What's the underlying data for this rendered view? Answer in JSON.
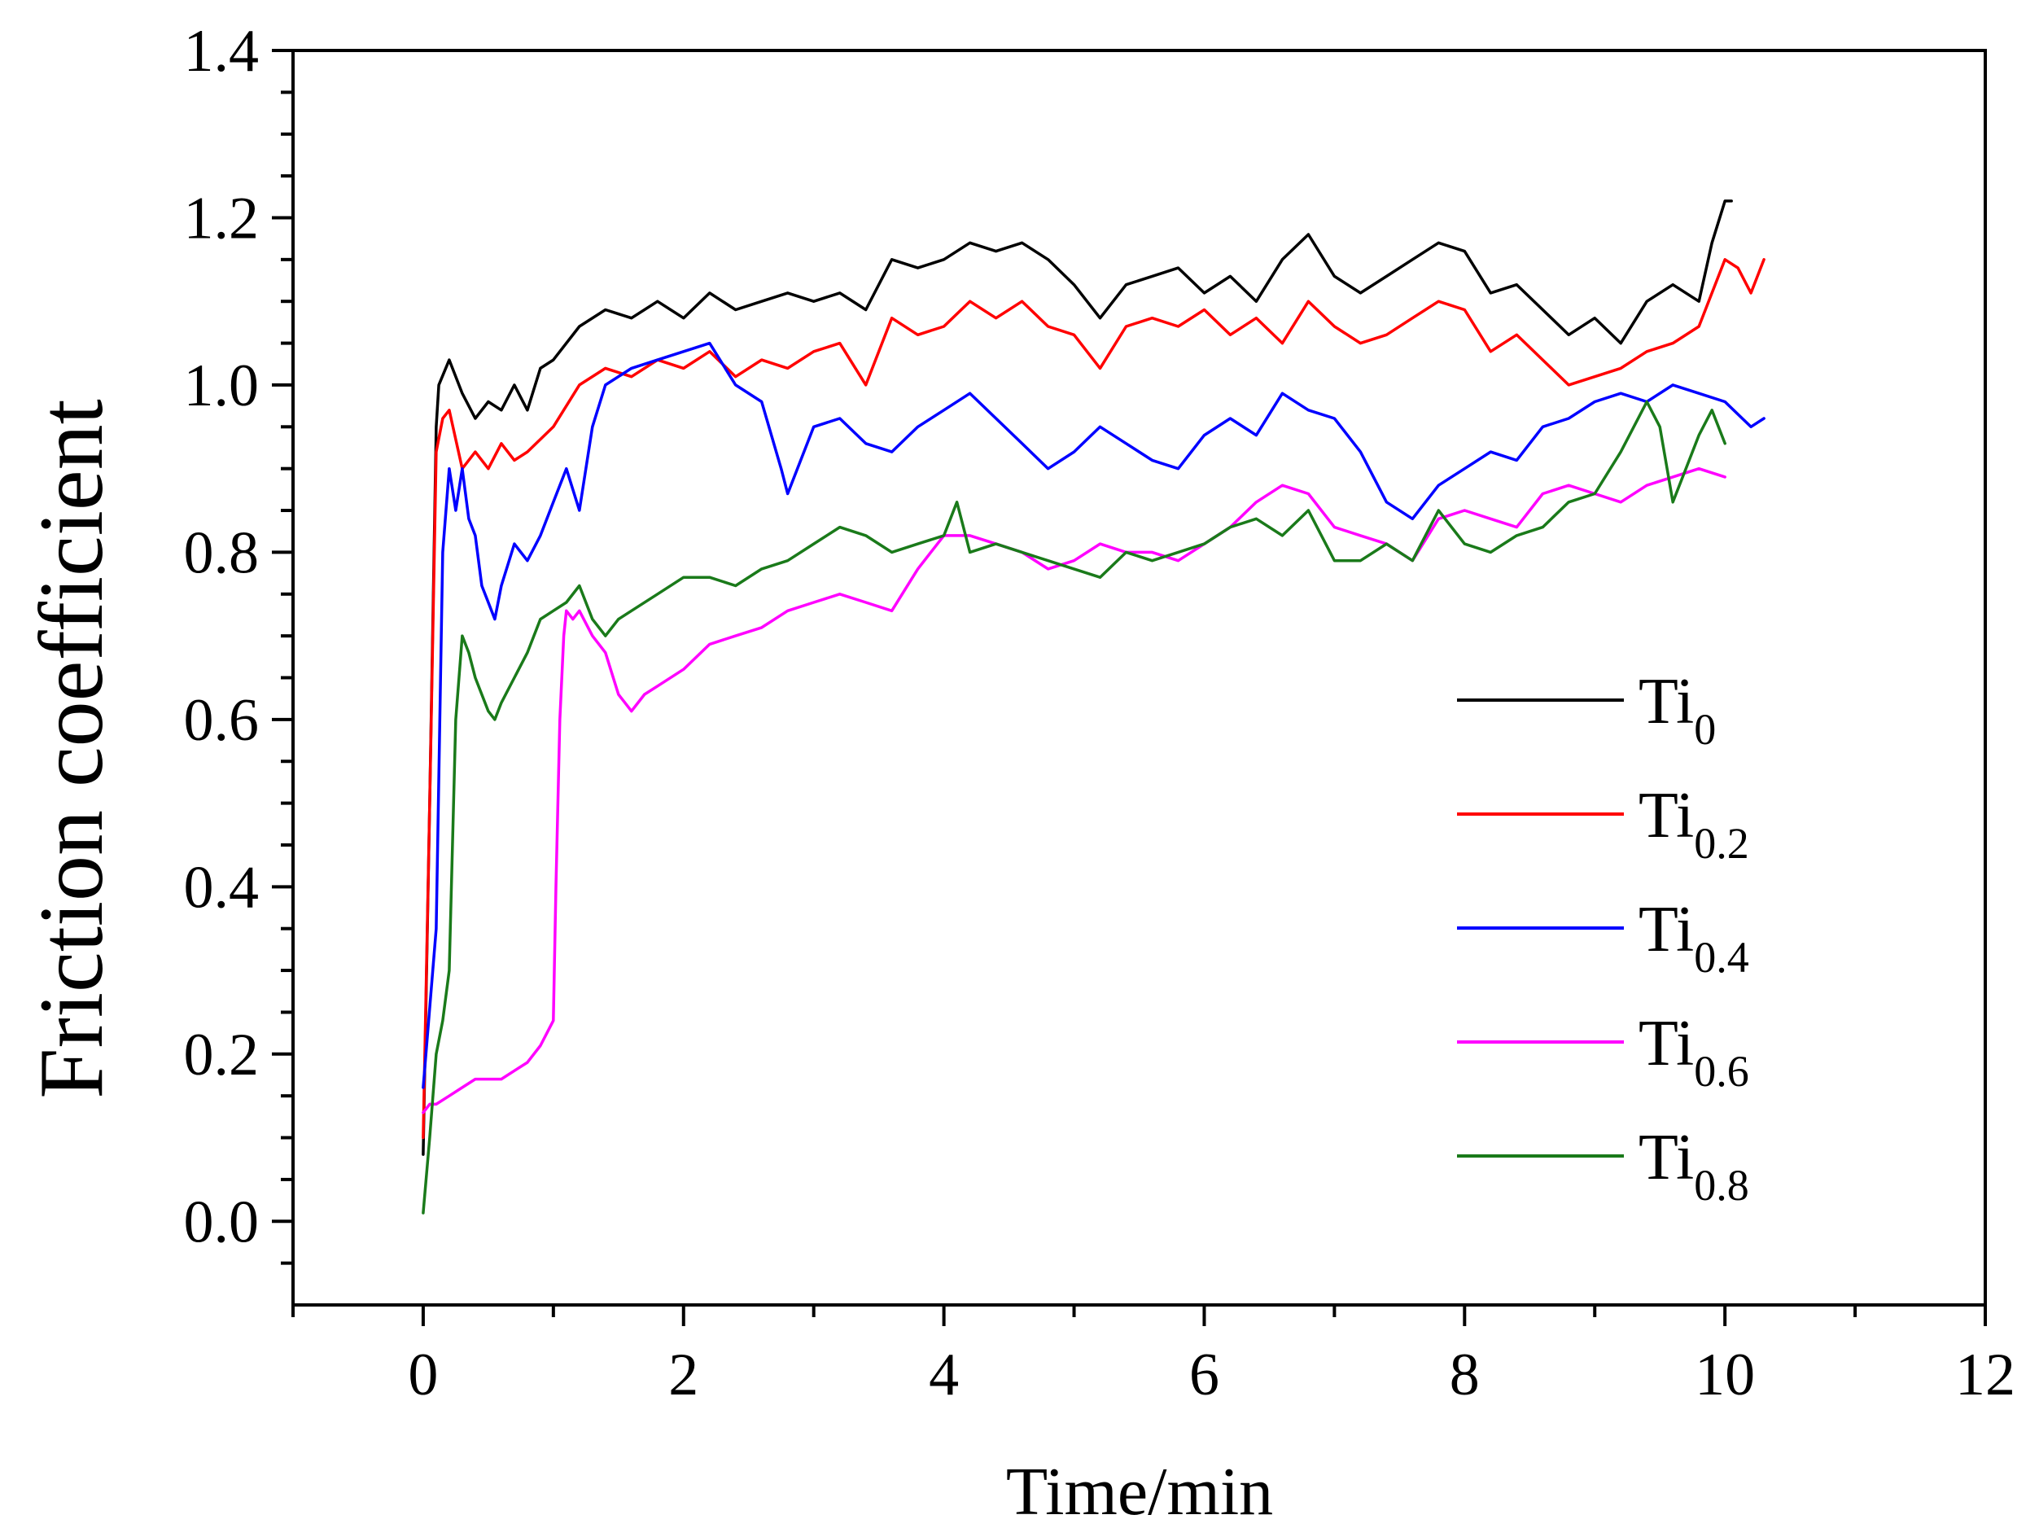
{
  "chart_data": {
    "type": "line",
    "title": "",
    "xlabel": "Time/min",
    "ylabel": "Friction coefficient",
    "xlim": [
      -1,
      12
    ],
    "ylim": [
      -0.1,
      1.4
    ],
    "xticks": [
      0,
      2,
      4,
      6,
      8,
      10,
      12
    ],
    "xtick_labels": [
      "0",
      "2",
      "4",
      "6",
      "8",
      "10",
      "12"
    ],
    "yticks": [
      0.0,
      0.2,
      0.4,
      0.6,
      0.8,
      1.0,
      1.2,
      1.4
    ],
    "ytick_labels": [
      "0.0",
      "0.2",
      "0.4",
      "0.6",
      "0.8",
      "1.0",
      "1.2",
      "1.4"
    ],
    "grid": false,
    "legend_position": "right",
    "series": [
      {
        "name": "Ti0",
        "label_main": "Ti",
        "label_sub": "0",
        "color": "#000000",
        "x": [
          0,
          0.05,
          0.1,
          0.12,
          0.2,
          0.3,
          0.4,
          0.5,
          0.6,
          0.7,
          0.8,
          0.9,
          1.0,
          1.2,
          1.4,
          1.6,
          1.8,
          2.0,
          2.2,
          2.4,
          2.6,
          2.8,
          3.0,
          3.2,
          3.4,
          3.6,
          3.8,
          4.0,
          4.2,
          4.4,
          4.6,
          4.8,
          5.0,
          5.2,
          5.4,
          5.6,
          5.8,
          6.0,
          6.2,
          6.4,
          6.6,
          6.8,
          7.0,
          7.2,
          7.4,
          7.6,
          7.8,
          8.0,
          8.2,
          8.4,
          8.6,
          8.8,
          9.0,
          9.2,
          9.4,
          9.6,
          9.8,
          9.9,
          10.0,
          10.05
        ],
        "y": [
          0.08,
          0.5,
          0.95,
          1.0,
          1.03,
          0.99,
          0.96,
          0.98,
          0.97,
          1.0,
          0.97,
          1.02,
          1.03,
          1.07,
          1.09,
          1.08,
          1.1,
          1.08,
          1.11,
          1.09,
          1.1,
          1.11,
          1.1,
          1.11,
          1.09,
          1.15,
          1.14,
          1.15,
          1.17,
          1.16,
          1.17,
          1.15,
          1.12,
          1.08,
          1.12,
          1.13,
          1.14,
          1.11,
          1.13,
          1.1,
          1.15,
          1.18,
          1.13,
          1.11,
          1.13,
          1.15,
          1.17,
          1.16,
          1.11,
          1.12,
          1.09,
          1.06,
          1.08,
          1.05,
          1.1,
          1.12,
          1.1,
          1.17,
          1.22,
          1.22
        ]
      },
      {
        "name": "Ti0.2",
        "label_main": "Ti",
        "label_sub": "0.2",
        "color": "#ff0000",
        "x": [
          0,
          0.05,
          0.1,
          0.15,
          0.2,
          0.3,
          0.4,
          0.5,
          0.6,
          0.7,
          0.8,
          1.0,
          1.2,
          1.4,
          1.6,
          1.8,
          2.0,
          2.2,
          2.4,
          2.6,
          2.8,
          3.0,
          3.2,
          3.4,
          3.6,
          3.8,
          4.0,
          4.2,
          4.4,
          4.6,
          4.8,
          5.0,
          5.2,
          5.4,
          5.6,
          5.8,
          6.0,
          6.2,
          6.4,
          6.6,
          6.8,
          7.0,
          7.2,
          7.4,
          7.6,
          7.8,
          8.0,
          8.2,
          8.4,
          8.6,
          8.8,
          9.0,
          9.2,
          9.4,
          9.6,
          9.8,
          10.0,
          10.1,
          10.2,
          10.3
        ],
        "y": [
          0.1,
          0.5,
          0.92,
          0.96,
          0.97,
          0.9,
          0.92,
          0.9,
          0.93,
          0.91,
          0.92,
          0.95,
          1.0,
          1.02,
          1.01,
          1.03,
          1.02,
          1.04,
          1.01,
          1.03,
          1.02,
          1.04,
          1.05,
          1.0,
          1.08,
          1.06,
          1.07,
          1.1,
          1.08,
          1.1,
          1.07,
          1.06,
          1.02,
          1.07,
          1.08,
          1.07,
          1.09,
          1.06,
          1.08,
          1.05,
          1.1,
          1.07,
          1.05,
          1.06,
          1.08,
          1.1,
          1.09,
          1.04,
          1.06,
          1.03,
          1.0,
          1.01,
          1.02,
          1.04,
          1.05,
          1.07,
          1.15,
          1.14,
          1.11,
          1.15
        ]
      },
      {
        "name": "Ti0.4",
        "label_main": "Ti",
        "label_sub": "0.4",
        "color": "#0000ff",
        "x": [
          0,
          0.1,
          0.15,
          0.2,
          0.25,
          0.3,
          0.35,
          0.4,
          0.45,
          0.5,
          0.55,
          0.6,
          0.7,
          0.8,
          0.9,
          1.0,
          1.1,
          1.2,
          1.3,
          1.4,
          1.6,
          1.8,
          2.0,
          2.2,
          2.4,
          2.6,
          2.75,
          2.8,
          3.0,
          3.2,
          3.4,
          3.6,
          3.8,
          4.0,
          4.2,
          4.4,
          4.6,
          4.8,
          5.0,
          5.2,
          5.4,
          5.6,
          5.8,
          6.0,
          6.2,
          6.4,
          6.6,
          6.8,
          7.0,
          7.2,
          7.4,
          7.6,
          7.8,
          8.0,
          8.2,
          8.4,
          8.6,
          8.8,
          9.0,
          9.2,
          9.4,
          9.6,
          9.8,
          10.0,
          10.2,
          10.3
        ],
        "y": [
          0.16,
          0.35,
          0.8,
          0.9,
          0.85,
          0.9,
          0.84,
          0.82,
          0.76,
          0.74,
          0.72,
          0.76,
          0.81,
          0.79,
          0.82,
          0.86,
          0.9,
          0.85,
          0.95,
          1.0,
          1.02,
          1.03,
          1.04,
          1.05,
          1.0,
          0.98,
          0.9,
          0.87,
          0.95,
          0.96,
          0.93,
          0.92,
          0.95,
          0.97,
          0.99,
          0.96,
          0.93,
          0.9,
          0.92,
          0.95,
          0.93,
          0.91,
          0.9,
          0.94,
          0.96,
          0.94,
          0.99,
          0.97,
          0.96,
          0.92,
          0.86,
          0.84,
          0.88,
          0.9,
          0.92,
          0.91,
          0.95,
          0.96,
          0.98,
          0.99,
          0.98,
          1.0,
          0.99,
          0.98,
          0.95,
          0.96
        ]
      },
      {
        "name": "Ti0.6",
        "label_main": "Ti",
        "label_sub": "0.6",
        "color": "#ff00ff",
        "x": [
          0,
          0.05,
          0.1,
          0.2,
          0.3,
          0.4,
          0.5,
          0.6,
          0.7,
          0.8,
          0.9,
          1.0,
          1.02,
          1.05,
          1.08,
          1.1,
          1.15,
          1.2,
          1.3,
          1.4,
          1.5,
          1.6,
          1.7,
          1.8,
          2.0,
          2.2,
          2.4,
          2.6,
          2.8,
          3.0,
          3.2,
          3.4,
          3.6,
          3.8,
          4.0,
          4.2,
          4.4,
          4.6,
          4.8,
          5.0,
          5.2,
          5.4,
          5.6,
          5.8,
          6.0,
          6.2,
          6.4,
          6.6,
          6.8,
          7.0,
          7.2,
          7.4,
          7.6,
          7.8,
          8.0,
          8.2,
          8.4,
          8.6,
          8.8,
          9.0,
          9.2,
          9.4,
          9.6,
          9.8,
          10.0
        ],
        "y": [
          0.13,
          0.14,
          0.14,
          0.15,
          0.16,
          0.17,
          0.17,
          0.17,
          0.18,
          0.19,
          0.21,
          0.24,
          0.4,
          0.6,
          0.7,
          0.73,
          0.72,
          0.73,
          0.7,
          0.68,
          0.63,
          0.61,
          0.63,
          0.64,
          0.66,
          0.69,
          0.7,
          0.71,
          0.73,
          0.74,
          0.75,
          0.74,
          0.73,
          0.78,
          0.82,
          0.82,
          0.81,
          0.8,
          0.78,
          0.79,
          0.81,
          0.8,
          0.8,
          0.79,
          0.81,
          0.83,
          0.86,
          0.88,
          0.87,
          0.83,
          0.82,
          0.81,
          0.79,
          0.84,
          0.85,
          0.84,
          0.83,
          0.87,
          0.88,
          0.87,
          0.86,
          0.88,
          0.89,
          0.9,
          0.89
        ]
      },
      {
        "name": "Ti0.8",
        "label_main": "Ti",
        "label_sub": "0.8",
        "color": "#1a7a1a",
        "x": [
          0,
          0.05,
          0.1,
          0.15,
          0.2,
          0.25,
          0.3,
          0.35,
          0.4,
          0.5,
          0.55,
          0.6,
          0.7,
          0.8,
          0.9,
          1.0,
          1.1,
          1.2,
          1.3,
          1.4,
          1.5,
          1.6,
          1.8,
          2.0,
          2.2,
          2.4,
          2.6,
          2.8,
          3.0,
          3.2,
          3.4,
          3.6,
          3.8,
          4.0,
          4.1,
          4.2,
          4.4,
          4.6,
          4.8,
          5.0,
          5.2,
          5.4,
          5.6,
          5.8,
          6.0,
          6.2,
          6.4,
          6.6,
          6.8,
          7.0,
          7.2,
          7.4,
          7.6,
          7.8,
          8.0,
          8.2,
          8.4,
          8.6,
          8.8,
          9.0,
          9.2,
          9.4,
          9.5,
          9.6,
          9.7,
          9.8,
          9.9,
          10.0
        ],
        "y": [
          0.01,
          0.1,
          0.2,
          0.24,
          0.3,
          0.6,
          0.7,
          0.68,
          0.65,
          0.61,
          0.6,
          0.62,
          0.65,
          0.68,
          0.72,
          0.73,
          0.74,
          0.76,
          0.72,
          0.7,
          0.72,
          0.73,
          0.75,
          0.77,
          0.77,
          0.76,
          0.78,
          0.79,
          0.81,
          0.83,
          0.82,
          0.8,
          0.81,
          0.82,
          0.86,
          0.8,
          0.81,
          0.8,
          0.79,
          0.78,
          0.77,
          0.8,
          0.79,
          0.8,
          0.81,
          0.83,
          0.84,
          0.82,
          0.85,
          0.79,
          0.79,
          0.81,
          0.79,
          0.85,
          0.81,
          0.8,
          0.82,
          0.83,
          0.86,
          0.87,
          0.92,
          0.98,
          0.95,
          0.86,
          0.9,
          0.94,
          0.97,
          0.93
        ]
      }
    ]
  }
}
